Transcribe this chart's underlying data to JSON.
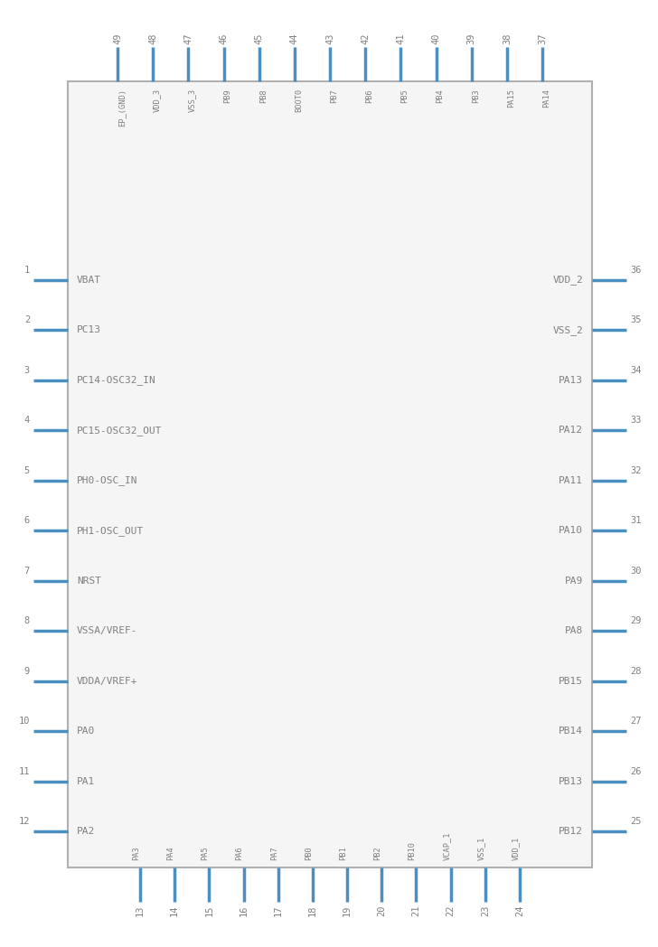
{
  "bg_color": "#ffffff",
  "border_color": "#b0b0b0",
  "pin_color": "#4a8fc0",
  "text_color": "#808080",
  "body_color": "#f5f5f5",
  "top_pins": [
    {
      "num": 49,
      "label": "EP_(GND)"
    },
    {
      "num": 48,
      "label": "VDD_3"
    },
    {
      "num": 47,
      "label": "VSS_3"
    },
    {
      "num": 46,
      "label": "PB9"
    },
    {
      "num": 45,
      "label": "PB8"
    },
    {
      "num": 44,
      "label": "BOOT0"
    },
    {
      "num": 43,
      "label": "PB7"
    },
    {
      "num": 42,
      "label": "PB6"
    },
    {
      "num": 41,
      "label": "PB5"
    },
    {
      "num": 40,
      "label": "PB4"
    },
    {
      "num": 39,
      "label": "PB3"
    },
    {
      "num": 38,
      "label": "PA15"
    },
    {
      "num": 37,
      "label": "PA14"
    }
  ],
  "bottom_pins": [
    {
      "num": 13,
      "label": "PA3"
    },
    {
      "num": 14,
      "label": "PA4"
    },
    {
      "num": 15,
      "label": "PA5"
    },
    {
      "num": 16,
      "label": "PA6"
    },
    {
      "num": 17,
      "label": "PA7"
    },
    {
      "num": 18,
      "label": "PB0"
    },
    {
      "num": 19,
      "label": "PB1"
    },
    {
      "num": 20,
      "label": "PB2"
    },
    {
      "num": 21,
      "label": "PB10"
    },
    {
      "num": 22,
      "label": "VCAP_1"
    },
    {
      "num": 23,
      "label": "VSS_1"
    },
    {
      "num": 24,
      "label": "VDD_1"
    }
  ],
  "left_pins": [
    {
      "num": 1,
      "label": "VBAT"
    },
    {
      "num": 2,
      "label": "PC13"
    },
    {
      "num": 3,
      "label": "PC14-OSC32_IN"
    },
    {
      "num": 4,
      "label": "PC15-OSC32_OUT"
    },
    {
      "num": 5,
      "label": "PH0-OSC_IN"
    },
    {
      "num": 6,
      "label": "PH1-OSC_OUT"
    },
    {
      "num": 7,
      "label": "NRST"
    },
    {
      "num": 8,
      "label": "VSSA/VREF-"
    },
    {
      "num": 9,
      "label": "VDDA/VREF+"
    },
    {
      "num": 10,
      "label": "PA0"
    },
    {
      "num": 11,
      "label": "PA1"
    },
    {
      "num": 12,
      "label": "PA2"
    }
  ],
  "right_pins": [
    {
      "num": 36,
      "label": "VDD_2"
    },
    {
      "num": 35,
      "label": "VSS_2"
    },
    {
      "num": 34,
      "label": "PA13"
    },
    {
      "num": 33,
      "label": "PA12"
    },
    {
      "num": 32,
      "label": "PA11"
    },
    {
      "num": 31,
      "label": "PA10"
    },
    {
      "num": 30,
      "label": "PA9"
    },
    {
      "num": 29,
      "label": "PA8"
    },
    {
      "num": 28,
      "label": "PB15"
    },
    {
      "num": 27,
      "label": "PB14"
    },
    {
      "num": 26,
      "label": "PB13"
    },
    {
      "num": 25,
      "label": "PB12"
    }
  ]
}
